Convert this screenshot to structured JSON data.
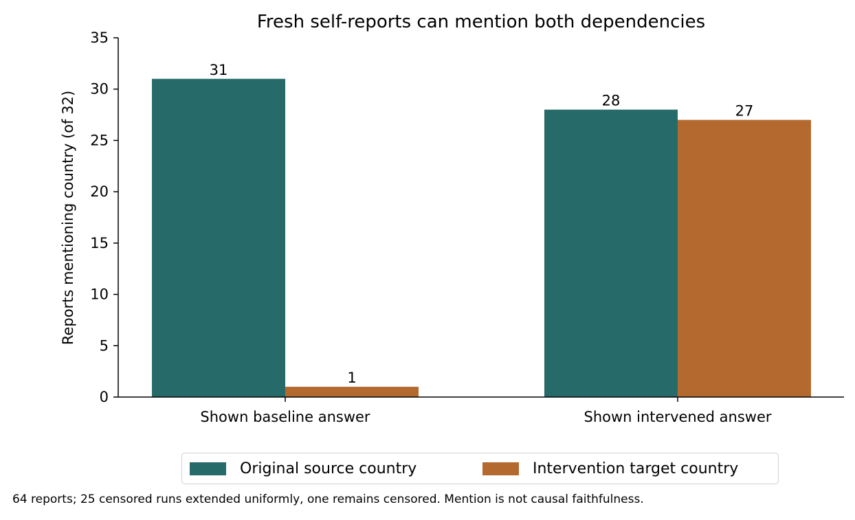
{
  "chart_data": {
    "type": "bar",
    "title": "Fresh self-reports can mention both dependencies",
    "xlabel": "",
    "ylabel": "Reports mentioning country (of 32)",
    "categories": [
      "Shown baseline answer",
      "Shown intervened answer"
    ],
    "series": [
      {
        "name": "Original source country",
        "color": "#266b69",
        "values": [
          31,
          28
        ]
      },
      {
        "name": "Intervention target country",
        "color": "#b46a2f",
        "values": [
          1,
          27
        ]
      }
    ],
    "ylim": [
      0,
      35
    ],
    "yticks": [
      0,
      5,
      10,
      15,
      20,
      25,
      30,
      35
    ],
    "data_labels": true,
    "grid": false,
    "legend": "bottom-center"
  },
  "footnote": "64 reports; 25 censored runs extended uniformly, one remains censored. Mention is not causal faithfulness."
}
